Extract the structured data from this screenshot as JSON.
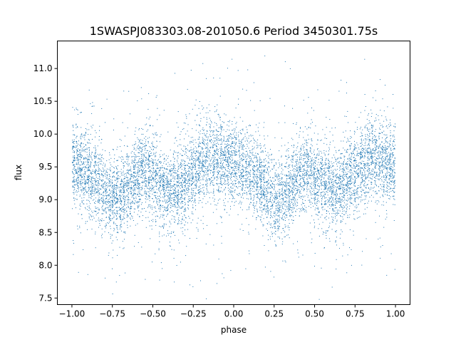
{
  "chart_data": {
    "type": "scatter",
    "title": "1SWASPJ083303.08-201050.6 Period 3450301.75s",
    "xlabel": "phase",
    "ylabel": "flux",
    "xlim": [
      -1.09,
      1.09
    ],
    "ylim": [
      7.4,
      11.42
    ],
    "xticks": [
      -1.0,
      -0.75,
      -0.5,
      -0.25,
      0.0,
      0.25,
      0.5,
      0.75,
      1.0
    ],
    "xtick_labels": [
      "−1.00",
      "−0.75",
      "−0.50",
      "−0.25",
      "0.00",
      "0.25",
      "0.50",
      "0.75",
      "1.00"
    ],
    "yticks": [
      7.5,
      8.0,
      8.5,
      9.0,
      9.5,
      10.0,
      10.5,
      11.0
    ],
    "ytick_labels": [
      "7.5",
      "8.0",
      "8.5",
      "9.0",
      "9.5",
      "10.0",
      "10.5",
      "11.0"
    ],
    "grid": false,
    "marker_color": "#1f77b4",
    "series": [
      {
        "description": "phase-folded light curve; mean flux profile per phase (repeats with period 1 in phase)",
        "x": [
          -1.0,
          -0.95,
          -0.9,
          -0.85,
          -0.8,
          -0.75,
          -0.7,
          -0.65,
          -0.6,
          -0.55,
          -0.5,
          -0.45,
          -0.4,
          -0.35,
          -0.3,
          -0.25,
          -0.2,
          -0.15,
          -0.1,
          -0.05,
          0.0,
          0.05,
          0.1,
          0.15,
          0.2,
          0.25,
          0.3,
          0.35,
          0.4,
          0.45,
          0.5,
          0.55,
          0.6,
          0.65,
          0.7,
          0.75,
          0.8,
          0.85,
          0.9,
          0.95,
          1.0
        ],
        "y": [
          9.55,
          9.5,
          9.4,
          9.3,
          9.15,
          9.0,
          9.05,
          9.2,
          9.35,
          9.45,
          9.3,
          9.2,
          9.15,
          9.15,
          9.25,
          9.4,
          9.55,
          9.65,
          9.6,
          9.55,
          9.55,
          9.5,
          9.4,
          9.3,
          9.15,
          9.0,
          9.05,
          9.2,
          9.35,
          9.45,
          9.3,
          9.2,
          9.15,
          9.15,
          9.25,
          9.4,
          9.55,
          9.65,
          9.6,
          9.55,
          9.55
        ],
        "scatter_sd": 0.3,
        "n_points": 9000
      }
    ]
  }
}
